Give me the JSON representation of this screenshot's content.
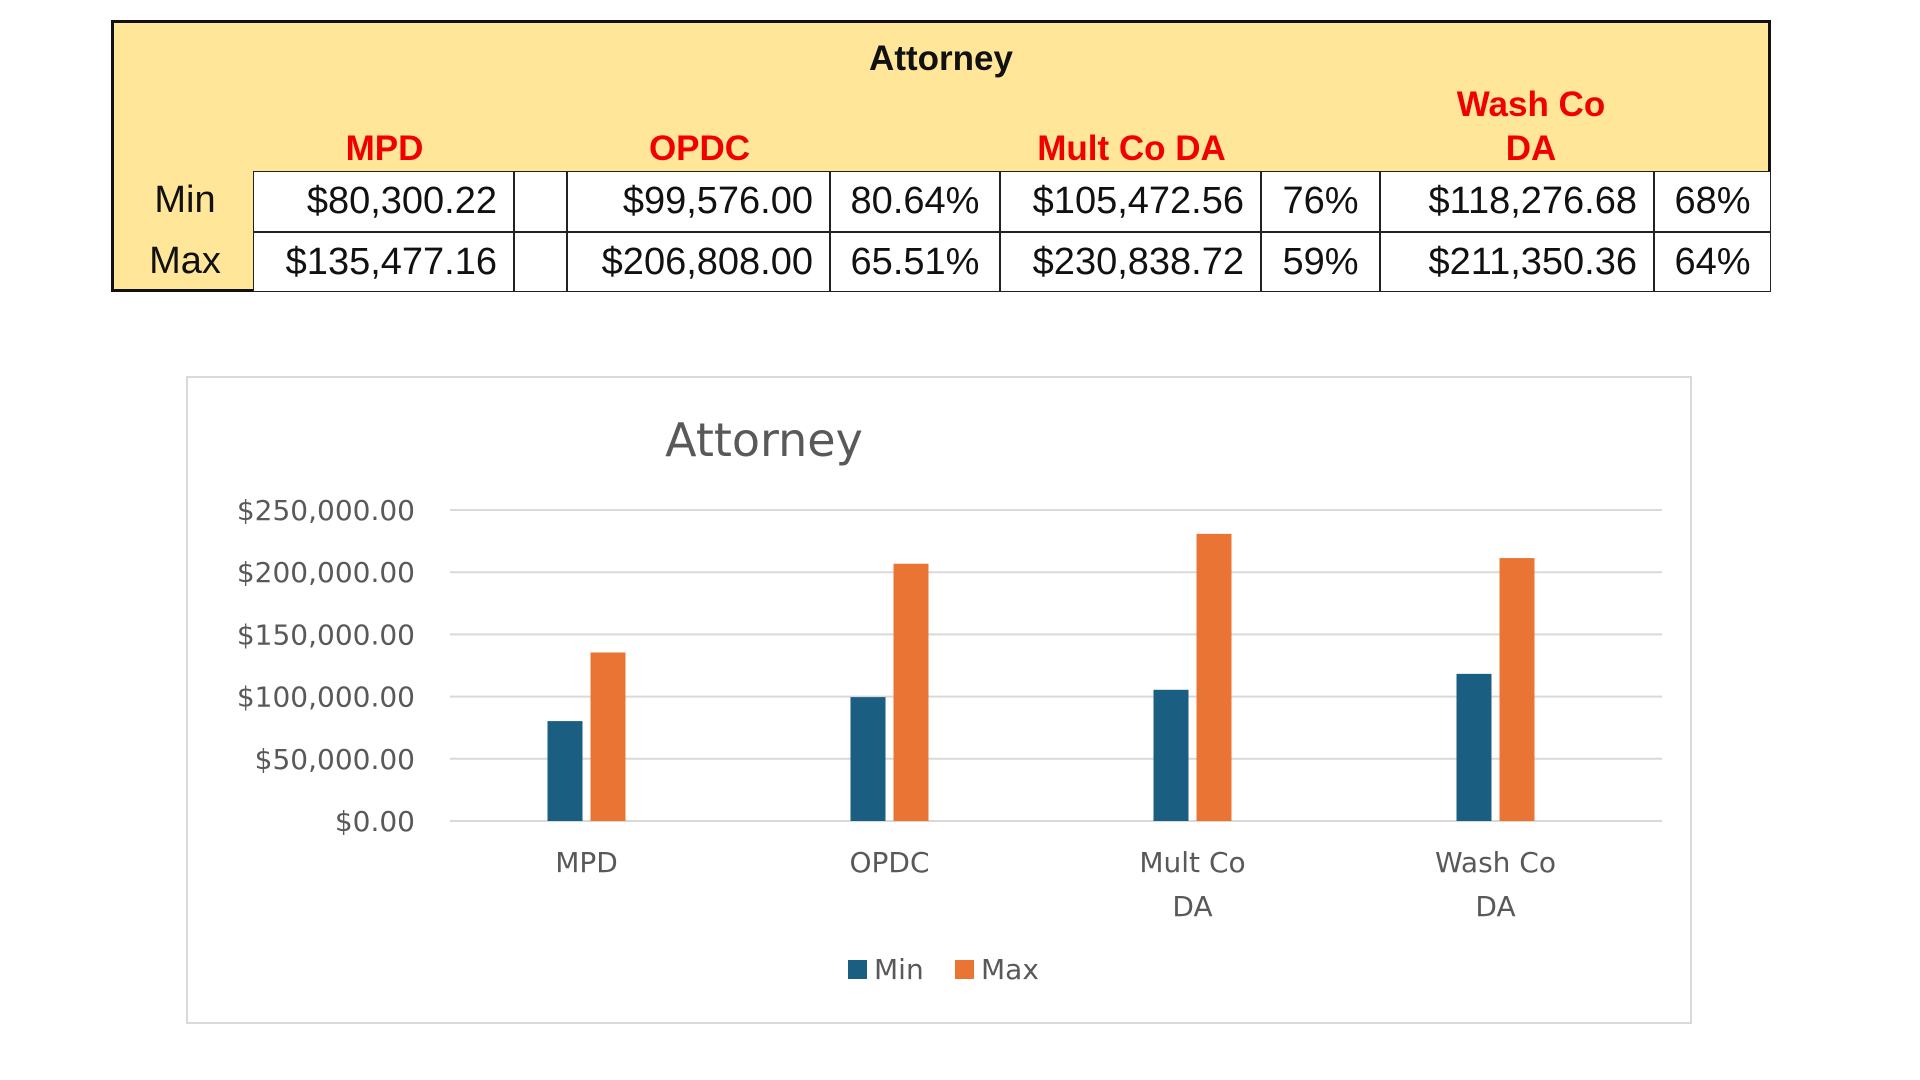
{
  "table": {
    "title": "Attorney",
    "columns": [
      "MPD",
      "OPDC",
      "Mult Co DA",
      "Wash Co DA"
    ],
    "rows": [
      {
        "label": "Min",
        "cells": [
          "$80,300.22",
          "",
          "$99,576.00",
          "80.64%",
          "$105,472.56",
          "76%",
          "$118,276.68",
          "68%"
        ]
      },
      {
        "label": "Max",
        "cells": [
          "$135,477.16",
          "",
          "$206,808.00",
          "65.51%",
          "$230,838.72",
          "59%",
          "$211,350.36",
          "64%"
        ]
      }
    ]
  },
  "chart_data": {
    "type": "bar",
    "title": "Attorney",
    "categories": [
      "MPD",
      "OPDC",
      "Mult Co DA",
      "Wash Co DA"
    ],
    "category_lines": [
      [
        "MPD"
      ],
      [
        "OPDC"
      ],
      [
        "Mult Co",
        "DA"
      ],
      [
        "Wash Co",
        "DA"
      ]
    ],
    "series": [
      {
        "name": "Min",
        "color": "#1a5e82",
        "values": [
          80300.22,
          99576.0,
          105472.56,
          118276.68
        ]
      },
      {
        "name": "Max",
        "color": "#e97434",
        "values": [
          135477.16,
          206808.0,
          230838.72,
          211350.36
        ]
      }
    ],
    "ylim": [
      0,
      250000
    ],
    "yticks": [
      0,
      50000,
      100000,
      150000,
      200000,
      250000
    ],
    "ytick_labels": [
      "$0.00",
      "$50,000.00",
      "$100,000.00",
      "$150,000.00",
      "$200,000.00",
      "$250,000.00"
    ],
    "grid": true,
    "legend": "bottom"
  }
}
